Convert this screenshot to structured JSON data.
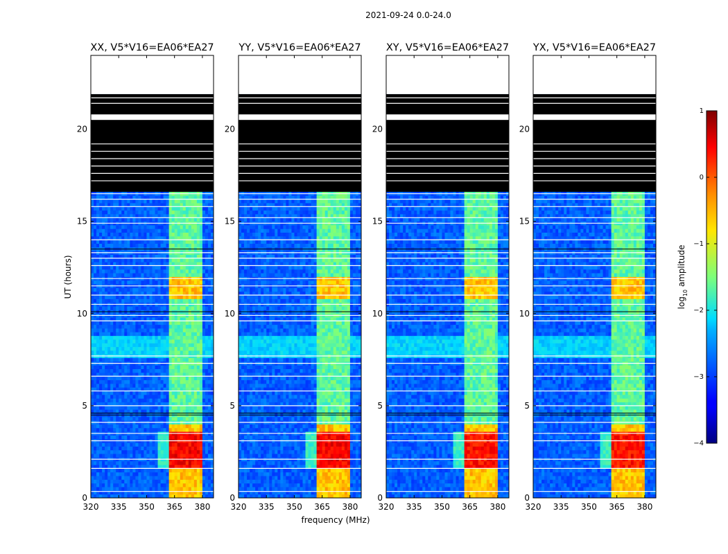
{
  "figure_title": "2021-09-24 0.0-24.0",
  "chart_data": {
    "type": "heatmap",
    "shared": {
      "xlabel": "frequency (MHz)",
      "ylabel": "UT (hours)",
      "xlim": [
        320,
        386
      ],
      "ylim": [
        0,
        24
      ],
      "xticks": [
        320,
        335,
        350,
        365,
        380
      ],
      "yticks": [
        0,
        5,
        10,
        15,
        20
      ],
      "colorscale": "jet",
      "colorbar": {
        "label": "log10 amplitude",
        "label_prefix": "log",
        "label_sub": "10",
        "label_suffix": " amplitude",
        "range": [
          -4,
          1
        ],
        "ticks": [
          1,
          0,
          -1,
          -2,
          -3,
          -4
        ],
        "tick_labels": [
          "1",
          "0",
          "−1",
          "−2",
          "−3",
          "−4"
        ]
      },
      "no_data_hours": [
        [
          21.3,
          21.9
        ],
        [
          20.5,
          24.0
        ]
      ],
      "flagged_hours": [
        [
          16.6,
          21.9
        ]
      ],
      "rfi_band_mhz": [
        361.8,
        380.5
      ],
      "rfi_channel_gaps_mhz": [
        [
          366.2,
          366.6
        ],
        [
          370.8,
          371.2
        ],
        [
          375.3,
          375.7
        ]
      ],
      "bright_rfi_hours": [
        [
          0.0,
          4.1
        ],
        [
          10.9,
          11.9
        ]
      ],
      "strongest_rfi_hours": [
        [
          1.6,
          3.6
        ]
      ],
      "background_log_amplitude": -2.8
    },
    "panels": [
      {
        "title": "XX, V5*V16=EA06*EA27",
        "polarization": "XX"
      },
      {
        "title": "YY, V5*V16=EA06*EA27",
        "polarization": "YY"
      },
      {
        "title": "XY, V5*V16=EA06*EA27",
        "polarization": "XY"
      },
      {
        "title": "YX, V5*V16=EA06*EA27",
        "polarization": "YX"
      }
    ]
  }
}
